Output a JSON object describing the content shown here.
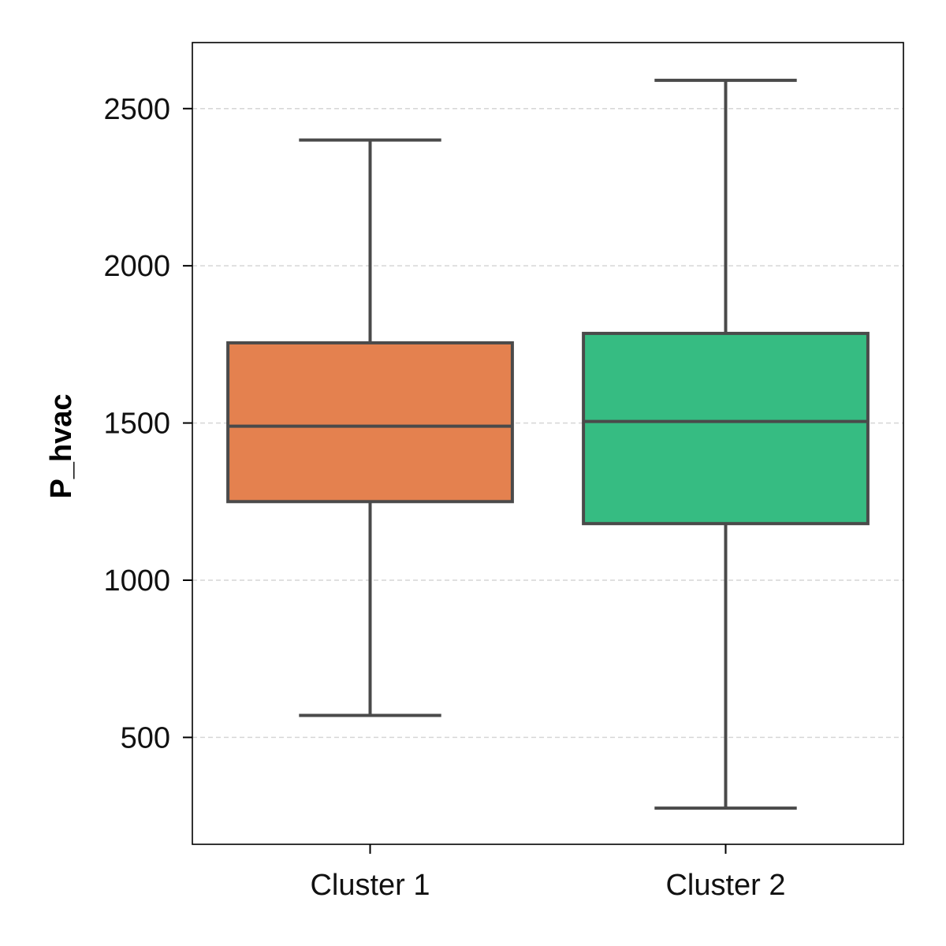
{
  "chart_data": {
    "type": "box",
    "title": "",
    "xlabel": "",
    "ylabel": "P_hvac",
    "ylim": [
      160,
      2710
    ],
    "yticks": [
      500,
      1000,
      1500,
      2000,
      2500
    ],
    "ytick_labels": [
      "500",
      "1000",
      "1500",
      "2000",
      "2500"
    ],
    "grid": "horizontal-dashed",
    "categories": [
      "Cluster 1",
      "Cluster 2"
    ],
    "boxes": [
      {
        "name": "Cluster 1",
        "whisker_low": 570,
        "q1": 1250,
        "median": 1490,
        "q3": 1755,
        "whisker_high": 2400,
        "color": "#E4814F"
      },
      {
        "name": "Cluster 2",
        "whisker_low": 275,
        "q1": 1180,
        "median": 1505,
        "q3": 1785,
        "whisker_high": 2590,
        "color": "#36BC82"
      }
    ],
    "line_color": "#4a4a4a"
  }
}
